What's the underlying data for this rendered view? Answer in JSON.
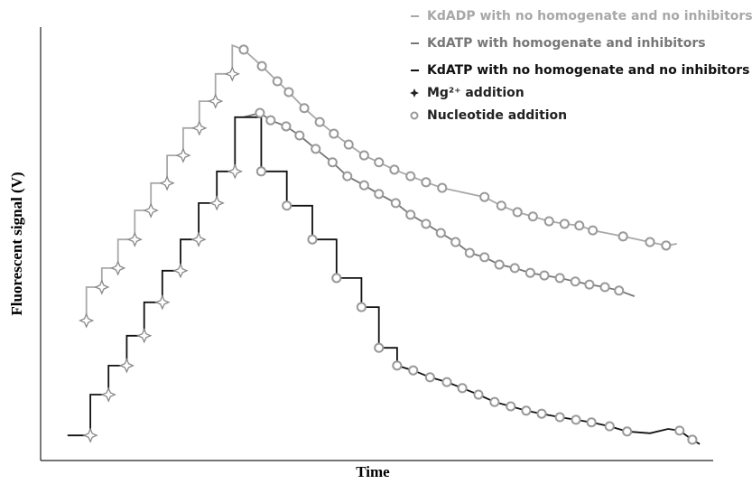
{
  "chart_data": {
    "type": "line",
    "x_label": "Time",
    "y_label": "Fluorescent signal (V)",
    "xlim": [
      0,
      100
    ],
    "ylim": [
      0,
      100
    ],
    "legend": "upper right",
    "series": [
      {
        "name": "KdADP with no homogenate and no inhibitors",
        "color": "#a8a8a8",
        "x": [
          6.0,
          6.8,
          6.8,
          9.1,
          9.1,
          11.5,
          11.5,
          14.0,
          14.0,
          16.4,
          16.4,
          18.8,
          18.8,
          21.2,
          21.2,
          23.6,
          23.6,
          26.0,
          26.0,
          28.5,
          28.5,
          30.2,
          32.9,
          35.2,
          36.9,
          39.2,
          41.5,
          43.6,
          45.8,
          48.1,
          50.3,
          52.6,
          55.0,
          57.3,
          59.7,
          66.0,
          68.5,
          70.9,
          73.2,
          75.6,
          77.9,
          80.1,
          82.1,
          86.6,
          90.6,
          93.0,
          94.6
        ],
        "values": [
          32.3,
          32.3,
          40.0,
          40.0,
          44.4,
          44.4,
          51.0,
          51.0,
          57.7,
          57.7,
          64.0,
          64.0,
          70.4,
          70.4,
          76.7,
          76.7,
          82.9,
          82.9,
          89.2,
          89.2,
          95.8,
          94.8,
          91.0,
          87.5,
          85.0,
          81.3,
          78.1,
          75.4,
          72.9,
          70.4,
          68.8,
          67.1,
          65.6,
          64.2,
          62.9,
          60.8,
          58.8,
          57.3,
          56.3,
          55.2,
          54.6,
          54.2,
          53.1,
          51.7,
          50.4,
          49.6,
          50.0
        ]
      },
      {
        "name": "KdATP with homogenate and inhibitors",
        "color": "#777777",
        "x": [
          30.2,
          32.6,
          34.2,
          36.5,
          38.5,
          40.9,
          43.4,
          45.6,
          48.1,
          50.3,
          52.8,
          55.0,
          57.3,
          59.5,
          61.7,
          63.8,
          66.0,
          68.2,
          70.5,
          72.8,
          74.9,
          77.2,
          79.5,
          81.6,
          83.9,
          86.0,
          88.3
        ],
        "values": [
          79.2,
          80.2,
          78.5,
          77.1,
          75.0,
          71.9,
          68.8,
          65.6,
          63.5,
          61.5,
          59.4,
          56.7,
          54.6,
          52.5,
          50.4,
          47.9,
          46.9,
          45.2,
          44.4,
          43.3,
          42.7,
          42.1,
          41.3,
          40.6,
          40.0,
          39.2,
          37.9
        ]
      },
      {
        "name": "KdATP with no homogenate and no inhibitors",
        "color": "#111111",
        "x": [
          4.0,
          7.4,
          7.4,
          10.1,
          10.1,
          12.8,
          12.8,
          15.4,
          15.4,
          18.1,
          18.1,
          20.8,
          20.8,
          23.5,
          23.5,
          26.2,
          26.2,
          28.9,
          28.9,
          32.8,
          32.8,
          36.6,
          36.6,
          40.4,
          40.4,
          44.0,
          44.0,
          47.7,
          47.7,
          50.3,
          50.3,
          53.0,
          53.0,
          55.4,
          57.9,
          60.4,
          62.7,
          65.1,
          67.5,
          69.9,
          72.2,
          74.5,
          77.2,
          79.6,
          81.9,
          84.6,
          87.2,
          90.6,
          93.3,
          95.0,
          96.9,
          98.0
        ],
        "values": [
          5.8,
          5.8,
          15.2,
          15.2,
          21.9,
          21.9,
          28.8,
          28.8,
          36.5,
          36.5,
          43.8,
          43.8,
          51.0,
          51.0,
          59.4,
          59.4,
          66.7,
          66.7,
          79.2,
          79.2,
          66.7,
          66.7,
          58.8,
          58.8,
          51.0,
          51.0,
          42.1,
          42.1,
          35.4,
          35.4,
          26.0,
          26.0,
          21.9,
          20.8,
          19.2,
          18.1,
          16.7,
          15.2,
          13.5,
          12.5,
          11.5,
          10.8,
          10.0,
          9.4,
          8.8,
          7.9,
          6.7,
          6.3,
          7.3,
          6.9,
          4.8,
          3.8
        ]
      }
    ],
    "markers": [
      {
        "name": "Mg²⁺ addition",
        "shape": "star",
        "color": "#222222",
        "x": [
          6.8,
          9.1,
          11.5,
          14.0,
          16.4,
          18.8,
          21.2,
          23.6,
          26.0,
          28.5,
          7.4,
          10.1,
          12.8,
          15.4,
          18.1,
          20.8,
          23.5,
          26.2,
          28.9
        ],
        "y": [
          32.3,
          40.0,
          44.4,
          51.0,
          57.7,
          64.0,
          70.4,
          76.7,
          82.9,
          89.2,
          5.8,
          15.2,
          21.9,
          28.8,
          36.5,
          43.8,
          51.0,
          59.4,
          66.7
        ]
      },
      {
        "name": "Nucleotide addition",
        "shape": "circle",
        "color": "#222222",
        "x": [
          30.2,
          32.9,
          35.2,
          36.9,
          39.2,
          41.5,
          43.6,
          45.8,
          48.1,
          50.3,
          52.6,
          55.0,
          57.3,
          59.7,
          66.0,
          68.5,
          70.9,
          73.2,
          75.6,
          77.9,
          80.1,
          82.1,
          86.6,
          90.6,
          93.0,
          32.6,
          34.2,
          36.5,
          38.5,
          40.9,
          43.4,
          45.6,
          48.1,
          50.3,
          52.8,
          55.0,
          57.3,
          59.5,
          61.7,
          63.8,
          66.0,
          68.2,
          70.5,
          72.8,
          74.9,
          77.2,
          79.5,
          81.6,
          83.9,
          86.0,
          32.8,
          36.6,
          40.4,
          44.0,
          47.7,
          50.3,
          53.0,
          55.4,
          57.9,
          60.4,
          62.7,
          65.1,
          67.5,
          69.9,
          72.2,
          74.5,
          77.2,
          79.6,
          81.9,
          84.6,
          87.2,
          95.0,
          96.9
        ],
        "y": [
          94.8,
          91.0,
          87.5,
          85.0,
          81.3,
          78.1,
          75.4,
          72.9,
          70.4,
          68.8,
          67.1,
          65.6,
          64.2,
          62.9,
          60.8,
          58.8,
          57.3,
          56.3,
          55.2,
          54.6,
          54.2,
          53.1,
          51.7,
          50.4,
          49.6,
          80.2,
          78.5,
          77.1,
          75.0,
          71.9,
          68.8,
          65.6,
          63.5,
          61.5,
          59.4,
          56.7,
          54.6,
          52.5,
          50.4,
          47.9,
          46.9,
          45.2,
          44.4,
          43.3,
          42.7,
          42.1,
          41.3,
          40.6,
          40.0,
          39.2,
          66.7,
          58.8,
          51.0,
          42.1,
          35.4,
          26.0,
          21.9,
          20.8,
          19.2,
          18.1,
          16.7,
          15.2,
          13.5,
          12.5,
          11.5,
          10.8,
          10.0,
          9.4,
          8.8,
          7.9,
          6.7,
          6.9,
          4.8
        ]
      }
    ]
  }
}
